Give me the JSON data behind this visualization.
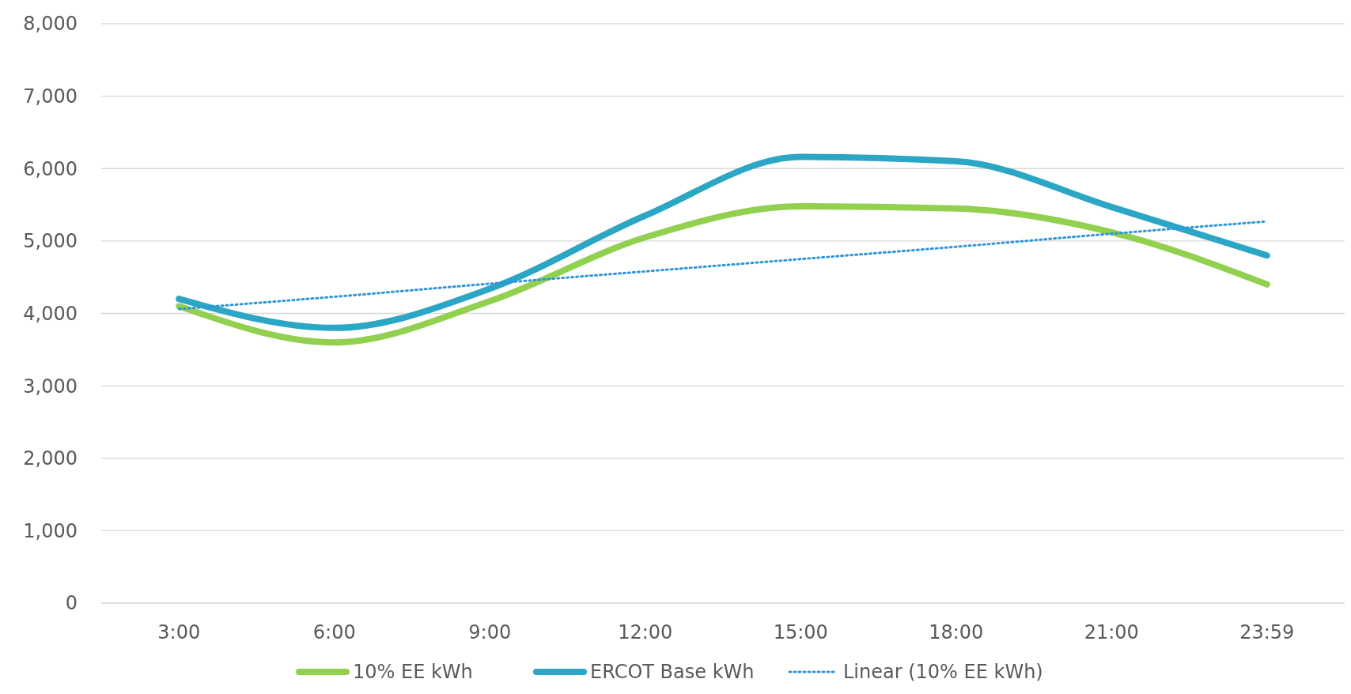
{
  "chart_data": {
    "type": "line",
    "categories": [
      "3:00",
      "6:00",
      "9:00",
      "12:00",
      "15:00",
      "18:00",
      "21:00",
      "23:59"
    ],
    "ylim": [
      0,
      8000
    ],
    "yticks": [
      {
        "value": 0,
        "label": "0"
      },
      {
        "value": 1000,
        "label": "1,000"
      },
      {
        "value": 2000,
        "label": "2,000"
      },
      {
        "value": 3000,
        "label": "3,000"
      },
      {
        "value": 4000,
        "label": "4,000"
      },
      {
        "value": 5000,
        "label": "5,000"
      },
      {
        "value": 6000,
        "label": "6,000"
      },
      {
        "value": 7000,
        "label": "7,000"
      },
      {
        "value": 8000,
        "label": "8,000"
      }
    ],
    "grid": "y",
    "legend": "bottom",
    "marker": "none",
    "series": [
      {
        "name": "10% EE kWh",
        "color": "#92d050",
        "values": [
          4100,
          3600,
          4170,
          5050,
          5480,
          5450,
          5120,
          4400
        ]
      },
      {
        "name": "ERCOT Base kWh",
        "color": "#2ba6c4",
        "values": [
          4200,
          3800,
          4340,
          5350,
          6160,
          6100,
          5470,
          4800
        ]
      },
      {
        "name": "Linear (10% EE kWh)",
        "color": "#2e96d8",
        "line_style": "dotted",
        "values": [
          4060,
          4230,
          4410,
          4580,
          4750,
          4920,
          5100,
          5270
        ]
      }
    ]
  }
}
